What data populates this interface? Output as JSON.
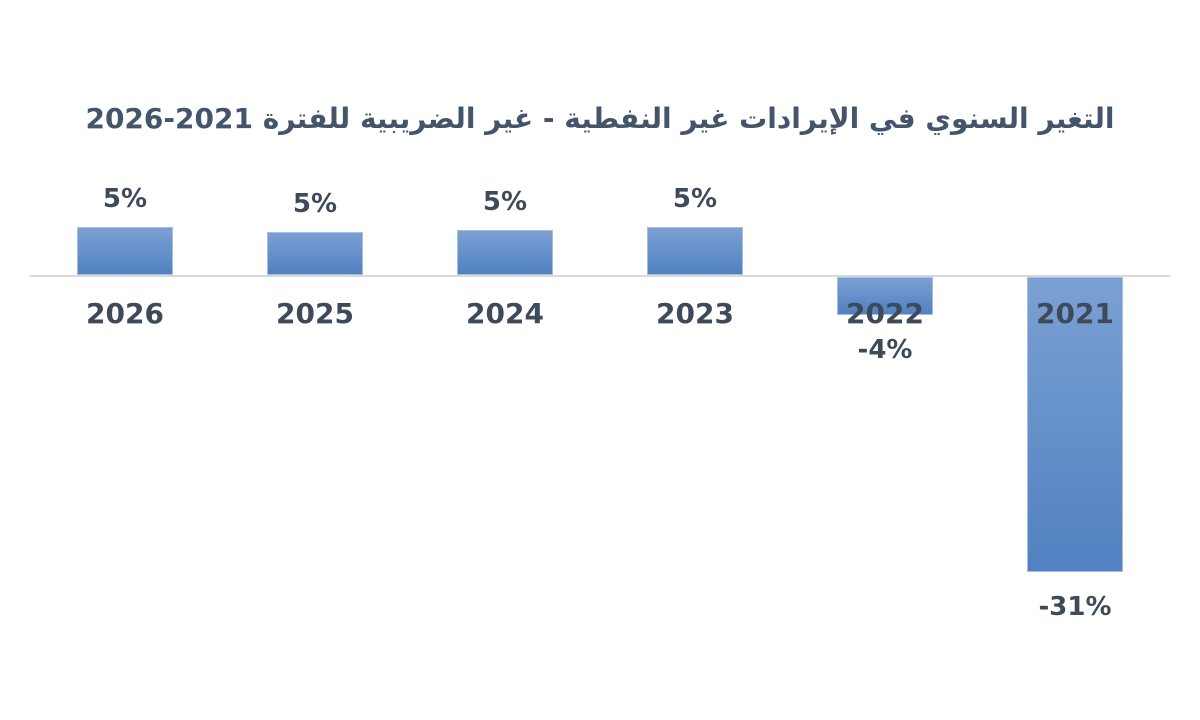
{
  "title": "التغير السنوي في الإيرادات غير النفطية - غير الضريبية للفترة 2021-2026",
  "colors": {
    "title": "#44546A",
    "label": "#3E4A5A",
    "axis_line": "#D9D9D9",
    "bar_gradient_top": "#7BA0D3",
    "bar_gradient_bottom": "#5181C1",
    "bar_border": "#A6BEE2",
    "background": "#FFFFFF"
  },
  "chart_data": {
    "type": "bar",
    "title": "التغير السنوي في الإيرادات غير النفطية - غير الضريبية للفترة 2021-2026",
    "categories": [
      "2026",
      "2025",
      "2024",
      "2023",
      "2022",
      "2021"
    ],
    "values": [
      5,
      5,
      5,
      5,
      -4,
      -31
    ],
    "values_unrounded_estimate": [
      5.1,
      4.5,
      4.7,
      5.0,
      -4.0,
      -31.0
    ],
    "value_labels": [
      "5%",
      "5%",
      "5%",
      "5%",
      "-4%",
      "-31%"
    ],
    "series_name": "",
    "xlabel": "",
    "ylabel": "",
    "unit": "%",
    "ylim": [
      -31,
      6
    ],
    "grid": false,
    "legend": "none",
    "axis_style": "horizontal baseline only, no ticks, category labels below baseline, data labels outside-end"
  }
}
